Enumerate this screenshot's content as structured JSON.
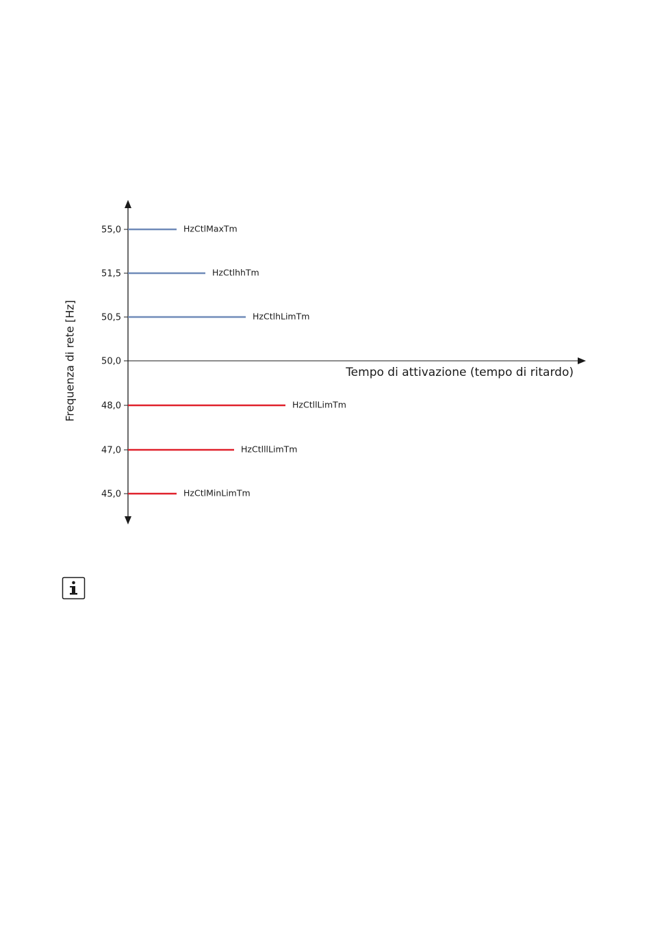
{
  "diagram": {
    "y_axis_title": "Frequenza di rete [Hz]",
    "x_axis_title": "Tempo di attivazione (tempo di ritardo)",
    "levels": [
      {
        "tick": "55,0",
        "label": "HzCtlMaxTm",
        "color": "#6f8ab8"
      },
      {
        "tick": "51,5",
        "label": "HzCtlhhTm",
        "color": "#6f8ab8"
      },
      {
        "tick": "50,5",
        "label": "HzCtlhLimTm",
        "color": "#6f8ab8"
      },
      {
        "tick": "50,0"
      },
      {
        "tick": "48,0",
        "label": "HzCtllLimTm",
        "color": "#e0202a"
      },
      {
        "tick": "47,0",
        "label": "HzCtlllLimTm",
        "color": "#e0202a"
      },
      {
        "tick": "45,0",
        "label": "HzCtlMinLimTm",
        "color": "#e0202a"
      }
    ]
  }
}
